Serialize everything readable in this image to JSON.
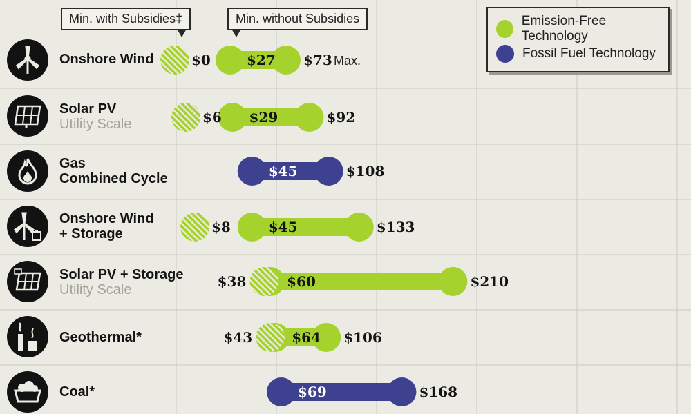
{
  "callouts": {
    "min_with_subsidies": "Min. with Subsidies‡",
    "min_without_subsidies": "Min. without Subsidies"
  },
  "legend": {
    "emission_free": "Emission-Free Technology",
    "fossil": "Fossil Fuel Technology"
  },
  "colors": {
    "emission_free": "#a6d22e",
    "fossil": "#3d418f",
    "grid": "#c9c9c1",
    "dark": "#121212"
  },
  "chart_data": {
    "type": "range-bar",
    "max_note": "Max.",
    "rows": [
      {
        "name": "Onshore Wind",
        "sub": "",
        "icon": "wind-turbine-icon",
        "tech": "emission_free",
        "with_subsidies": "$0",
        "min": "$27",
        "max": "$73",
        "min_value": 27,
        "max_value": 73,
        "sub_value": 0
      },
      {
        "name": "Solar PV",
        "sub": "Utility Scale",
        "icon": "solar-panel-icon",
        "tech": "emission_free",
        "with_subsidies": "$6",
        "min": "$29",
        "max": "$92",
        "min_value": 29,
        "max_value": 92,
        "sub_value": 6
      },
      {
        "name": "Gas",
        "sub2": "Combined Cycle",
        "icon": "flame-icon",
        "tech": "fossil",
        "with_subsidies": "",
        "min": "$45",
        "max": "$108",
        "min_value": 45,
        "max_value": 108,
        "sub_value": null
      },
      {
        "name": "Onshore Wind",
        "sub2": "+ Storage",
        "icon": "wind-turbine-battery-icon",
        "tech": "emission_free",
        "with_subsidies": "$8",
        "min": "$45",
        "max": "$133",
        "min_value": 45,
        "max_value": 133,
        "sub_value": 8
      },
      {
        "name": "Solar PV + Storage",
        "sub": "Utility Scale",
        "icon": "solar-panel-battery-icon",
        "tech": "emission_free",
        "with_subsidies": "$38",
        "min": "$60",
        "max": "$210",
        "min_value": 60,
        "max_value": 210,
        "sub_value": 38
      },
      {
        "name": "Geothermal*",
        "sub": "",
        "icon": "geothermal-plant-icon",
        "tech": "emission_free",
        "with_subsidies": "$43",
        "min": "$64",
        "max": "$106",
        "min_value": 64,
        "max_value": 106,
        "sub_value": 43
      },
      {
        "name": "Coal*",
        "sub": "",
        "icon": "coal-cart-icon",
        "tech": "fossil",
        "with_subsidies": "",
        "min": "$69",
        "max": "$168",
        "min_value": 69,
        "max_value": 168,
        "sub_value": null
      }
    ]
  }
}
